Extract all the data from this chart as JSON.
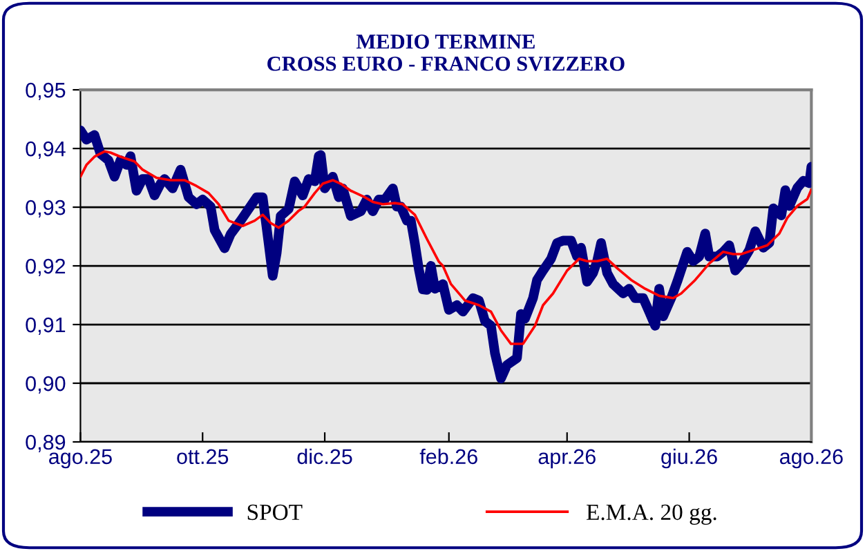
{
  "chart_data": {
    "type": "line",
    "title": "MEDIO TERMINE\nCROSS EURO - FRANCO SVIZZERO",
    "xlim": [
      "2025-08-01",
      "2026-08-01"
    ],
    "xticks": [
      {
        "value": "2025-08-01",
        "label": "ago.25"
      },
      {
        "value": "2025-10-01",
        "label": "ott.25"
      },
      {
        "value": "2025-12-01",
        "label": "dic.25"
      },
      {
        "value": "2026-02-01",
        "label": "feb.26"
      },
      {
        "value": "2026-04-01",
        "label": "apr.26"
      },
      {
        "value": "2026-06-01",
        "label": "giu.26"
      },
      {
        "value": "2026-08-01",
        "label": "ago.26"
      }
    ],
    "ylim": [
      0.89,
      0.95
    ],
    "yticks": [
      {
        "value": 0.89,
        "label": "0,89"
      },
      {
        "value": 0.9,
        "label": "0,90"
      },
      {
        "value": 0.91,
        "label": "0,91"
      },
      {
        "value": 0.92,
        "label": "0,92"
      },
      {
        "value": 0.93,
        "label": "0,93"
      },
      {
        "value": 0.94,
        "label": "0,94"
      },
      {
        "value": 0.95,
        "label": "0,95"
      }
    ],
    "grid": "y",
    "legend": "bottom",
    "marker": "none",
    "line_style": "solid",
    "series": [
      {
        "name": "SPOT",
        "color": "#000080",
        "x": [
          "2025-08-01",
          "2025-08-04",
          "2025-08-08",
          "2025-08-11",
          "2025-08-15",
          "2025-08-18",
          "2025-08-21",
          "2025-08-24",
          "2025-08-26",
          "2025-08-29",
          "2025-09-01",
          "2025-09-04",
          "2025-09-07",
          "2025-09-10",
          "2025-09-12",
          "2025-09-16",
          "2025-09-20",
          "2025-09-24",
          "2025-09-28",
          "2025-10-01",
          "2025-10-05",
          "2025-10-07",
          "2025-10-12",
          "2025-10-15",
          "2025-10-20",
          "2025-10-24",
          "2025-10-28",
          "2025-10-31",
          "2025-11-03",
          "2025-11-05",
          "2025-11-07",
          "2025-11-09",
          "2025-11-13",
          "2025-11-16",
          "2025-11-20",
          "2025-11-23",
          "2025-11-26",
          "2025-11-28",
          "2025-11-29",
          "2025-12-01",
          "2025-12-05",
          "2025-12-08",
          "2025-12-10",
          "2025-12-14",
          "2025-12-19",
          "2025-12-22",
          "2025-12-25",
          "2025-12-28",
          "2025-12-31",
          "2026-01-04",
          "2026-01-06",
          "2026-01-08",
          "2026-01-11",
          "2026-01-13",
          "2026-01-15",
          "2026-01-17",
          "2026-01-19",
          "2026-01-21",
          "2026-01-23",
          "2026-01-25",
          "2026-01-29",
          "2026-02-01",
          "2026-02-05",
          "2026-02-08",
          "2026-02-13",
          "2026-02-16",
          "2026-02-19",
          "2026-02-22",
          "2026-02-24",
          "2026-02-27",
          "2026-03-02",
          "2026-03-07",
          "2026-03-09",
          "2026-03-11",
          "2026-03-15",
          "2026-03-17",
          "2026-03-20",
          "2026-03-24",
          "2026-03-27",
          "2026-03-30",
          "2026-04-03",
          "2026-04-06",
          "2026-04-08",
          "2026-04-11",
          "2026-04-14",
          "2026-04-16",
          "2026-04-18",
          "2026-04-21",
          "2026-04-24",
          "2026-04-29",
          "2026-05-02",
          "2026-05-05",
          "2026-05-09",
          "2026-05-12",
          "2026-05-15",
          "2026-05-17",
          "2026-05-19",
          "2026-05-23",
          "2026-05-26",
          "2026-05-31",
          "2026-06-03",
          "2026-06-06",
          "2026-06-09",
          "2026-06-11",
          "2026-06-15",
          "2026-06-18",
          "2026-06-21",
          "2026-06-24",
          "2026-06-27",
          "2026-07-01",
          "2026-07-04",
          "2026-07-08",
          "2026-07-11",
          "2026-07-13",
          "2026-07-17",
          "2026-07-19",
          "2026-07-21",
          "2026-07-25",
          "2026-07-28",
          "2026-07-31",
          "2026-08-01"
        ],
        "values": [
          0.9431,
          0.9415,
          0.9423,
          0.9391,
          0.938,
          0.9352,
          0.938,
          0.9372,
          0.9387,
          0.9328,
          0.9348,
          0.9348,
          0.932,
          0.934,
          0.9348,
          0.9332,
          0.9364,
          0.9317,
          0.9305,
          0.9313,
          0.9301,
          0.9261,
          0.923,
          0.9254,
          0.9277,
          0.9297,
          0.9317,
          0.9317,
          0.9238,
          0.9183,
          0.9222,
          0.9285,
          0.9297,
          0.9344,
          0.932,
          0.9348,
          0.9344,
          0.9387,
          0.9389,
          0.9332,
          0.9352,
          0.9317,
          0.9332,
          0.9285,
          0.9293,
          0.9313,
          0.9293,
          0.9313,
          0.9313,
          0.9332,
          0.9301,
          0.9301,
          0.9277,
          0.9277,
          0.9238,
          0.9194,
          0.916,
          0.9159,
          0.92,
          0.9161,
          0.9169,
          0.9125,
          0.9133,
          0.9122,
          0.9145,
          0.9141,
          0.9106,
          0.9098,
          0.9051,
          0.9008,
          0.9031,
          0.9043,
          0.9118,
          0.911,
          0.9145,
          0.9176,
          0.9192,
          0.9212,
          0.9239,
          0.9243,
          0.9243,
          0.9216,
          0.9231,
          0.9173,
          0.9188,
          0.9208,
          0.9239,
          0.9188,
          0.9169,
          0.9153,
          0.9161,
          0.9145,
          0.9145,
          0.9122,
          0.9098,
          0.9161,
          0.9114,
          0.9145,
          0.9173,
          0.9224,
          0.9208,
          0.9216,
          0.9255,
          0.9216,
          0.9216,
          0.9224,
          0.9235,
          0.9192,
          0.9204,
          0.9227,
          0.9259,
          0.9231,
          0.9239,
          0.9298,
          0.9286,
          0.9329,
          0.9302,
          0.9333,
          0.9345,
          0.9341,
          0.9369
        ]
      },
      {
        "name": "E.M.A. 20 gg.",
        "color": "#ff0000",
        "x": [
          "2025-08-01",
          "2025-08-04",
          "2025-08-08",
          "2025-08-13",
          "2025-08-16",
          "2025-08-21",
          "2025-08-28",
          "2025-09-01",
          "2025-09-08",
          "2025-09-15",
          "2025-09-22",
          "2025-09-28",
          "2025-10-04",
          "2025-10-09",
          "2025-10-14",
          "2025-10-21",
          "2025-10-27",
          "2025-10-31",
          "2025-11-04",
          "2025-11-08",
          "2025-11-13",
          "2025-11-18",
          "2025-11-21",
          "2025-11-26",
          "2025-11-30",
          "2025-12-05",
          "2025-12-09",
          "2025-12-14",
          "2025-12-21",
          "2025-12-25",
          "2025-12-30",
          "2026-01-05",
          "2026-01-09",
          "2026-01-15",
          "2026-01-21",
          "2026-01-27",
          "2026-01-29",
          "2026-02-02",
          "2026-02-09",
          "2026-02-16",
          "2026-02-22",
          "2026-02-27",
          "2026-03-04",
          "2026-03-10",
          "2026-03-16",
          "2026-03-20",
          "2026-03-25",
          "2026-04-01",
          "2026-04-07",
          "2026-04-11",
          "2026-04-16",
          "2026-04-21",
          "2026-04-26",
          "2026-05-03",
          "2026-05-10",
          "2026-05-17",
          "2026-05-24",
          "2026-05-28",
          "2026-06-04",
          "2026-06-11",
          "2026-06-18",
          "2026-06-23",
          "2026-06-27",
          "2026-07-03",
          "2026-07-10",
          "2026-07-16",
          "2026-07-20",
          "2026-07-25",
          "2026-07-30",
          "2026-08-01"
        ],
        "values": [
          0.9352,
          0.9372,
          0.9386,
          0.9395,
          0.9393,
          0.9386,
          0.9378,
          0.9364,
          0.935,
          0.9346,
          0.9346,
          0.9336,
          0.9324,
          0.9305,
          0.9277,
          0.9268,
          0.9277,
          0.9287,
          0.9273,
          0.9265,
          0.9277,
          0.9294,
          0.9301,
          0.9324,
          0.934,
          0.9346,
          0.934,
          0.9328,
          0.9317,
          0.9309,
          0.9305,
          0.9307,
          0.9305,
          0.9287,
          0.9246,
          0.9207,
          0.92,
          0.9169,
          0.9141,
          0.9133,
          0.9122,
          0.909,
          0.9067,
          0.9067,
          0.9098,
          0.9133,
          0.9153,
          0.9192,
          0.9212,
          0.9208,
          0.9208,
          0.9212,
          0.9196,
          0.9176,
          0.9161,
          0.9149,
          0.9145,
          0.9153,
          0.9176,
          0.9204,
          0.9224,
          0.922,
          0.922,
          0.9227,
          0.9235,
          0.9255,
          0.9282,
          0.9302,
          0.9314,
          0.933
        ]
      }
    ]
  }
}
